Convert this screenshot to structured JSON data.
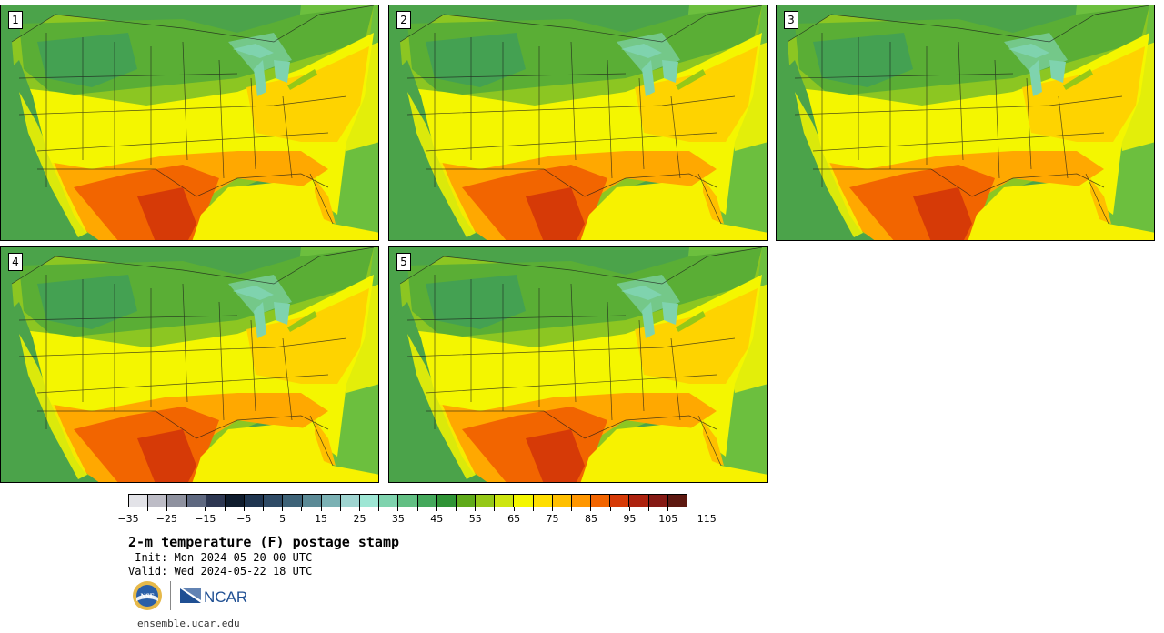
{
  "panels": [
    {
      "label": "1"
    },
    {
      "label": "2"
    },
    {
      "label": "3"
    },
    {
      "label": "4"
    },
    {
      "label": "5"
    }
  ],
  "colorbar": {
    "colors": [
      "#e3e3e8",
      "#bdbcc6",
      "#8e919f",
      "#5e6880",
      "#2d3752",
      "#0f1c2e",
      "#1f3550",
      "#2f4b66",
      "#3e6378",
      "#5b8a96",
      "#7bb1b4",
      "#9fd4d0",
      "#9ee6d4",
      "#7fd3ae",
      "#62bf83",
      "#44a85b",
      "#2f9335",
      "#5faa1a",
      "#95c817",
      "#cde50f",
      "#f4f600",
      "#ffde00",
      "#ffbf00",
      "#ff9600",
      "#f26500",
      "#d63a07",
      "#ad220e",
      "#851a14",
      "#5d1810"
    ],
    "tick_labels": [
      "−35",
      "−25",
      "−15",
      "−5",
      "5",
      "15",
      "25",
      "35",
      "45",
      "55",
      "65",
      "75",
      "85",
      "95",
      "105",
      "115"
    ]
  },
  "title": "2-m temperature (F) postage stamp",
  "init": " Init: Mon 2024-05-20 00 UTC",
  "valid": "Valid: Wed 2024-05-22 18 UTC",
  "logos": {
    "nsf": "NSF",
    "ncar": "NCAR"
  },
  "site": "ensemble.ucar.edu"
}
